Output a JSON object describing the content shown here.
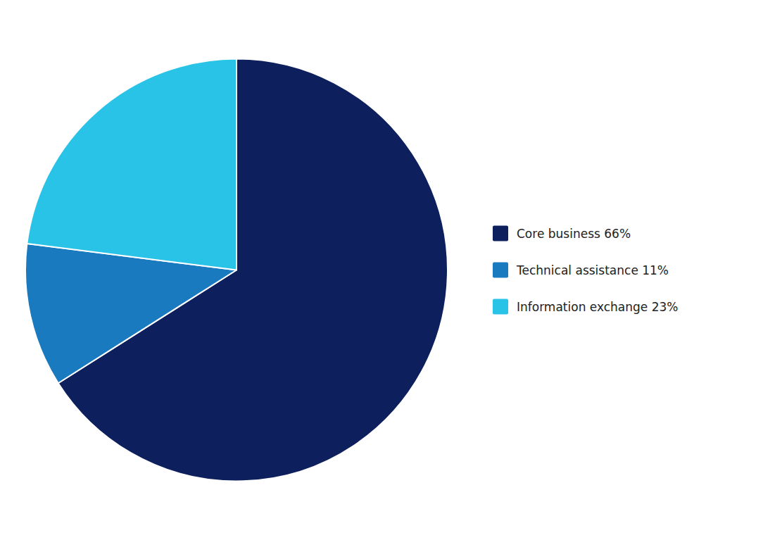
{
  "chart_data": {
    "type": "pie",
    "categories": [
      "Core business 66%",
      "Technical assistance 11%",
      "Information exchange 23%"
    ],
    "values": [
      66,
      11,
      23
    ],
    "colors": [
      "#0d1f5c",
      "#1a7abf",
      "#29c3e8"
    ],
    "legend": "right"
  }
}
